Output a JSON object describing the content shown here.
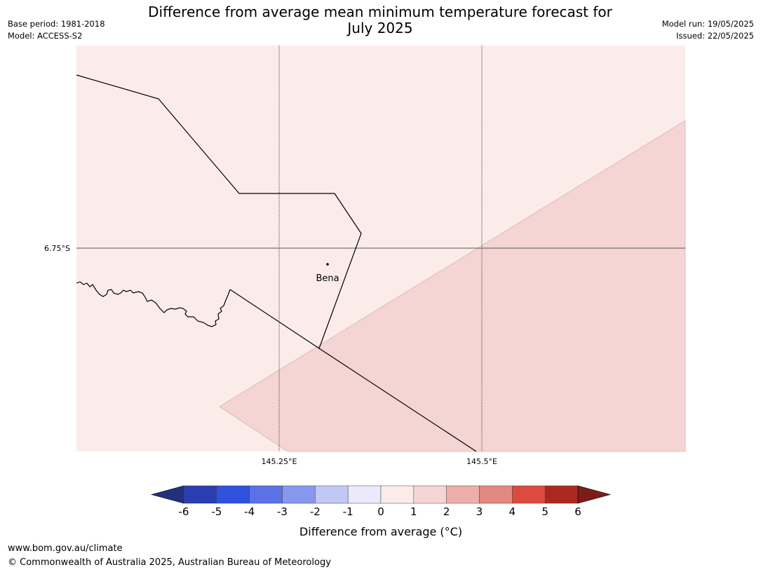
{
  "title": {
    "line1": "Difference from average mean minimum temperature forecast for",
    "line2": "July 2025"
  },
  "meta_left": {
    "base_period": "Base period: 1981-2018",
    "model": "Model: ACCESS-S2"
  },
  "meta_right": {
    "model_run": "Model run: 19/05/2025",
    "issued": "Issued: 22/05/2025"
  },
  "map": {
    "lat_label": "6.75°S",
    "lon_labels": [
      "145.25°E",
      "145.5°E"
    ],
    "place": {
      "name": "Bena"
    },
    "colors": {
      "background_anomaly_0_1": "#fbecea",
      "anomaly_1_2": "#f4d5d3",
      "boundary": "#000000"
    }
  },
  "colorbar": {
    "ticks": [
      "-6",
      "-5",
      "-4",
      "-3",
      "-2",
      "-1",
      "0",
      "1",
      "2",
      "3",
      "4",
      "5",
      "6"
    ],
    "colors": [
      "#23307f",
      "#2a3eb1",
      "#3050de",
      "#5a72e6",
      "#8797ee",
      "#c1c8f5",
      "#eaeafc",
      "#fbecea",
      "#f4d5d3",
      "#edaea9",
      "#e48882",
      "#dc4b3e",
      "#ab2820",
      "#7d1c18"
    ],
    "label": "Difference from average ($^\\circ$C)",
    "label_display": "Difference from average (°C)"
  },
  "footer": {
    "url": "www.bom.gov.au/climate",
    "copyright": "© Commonwealth of Australia 2025, Australian Bureau of Meteorology"
  }
}
